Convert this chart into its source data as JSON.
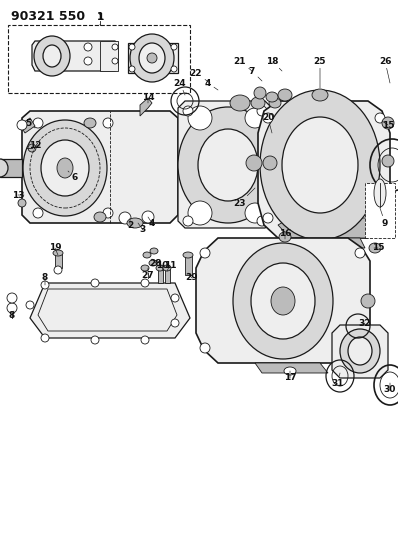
{
  "title": "90321 550",
  "bg_color": "#ffffff",
  "line_color": "#1a1a1a",
  "fig_width": 3.98,
  "fig_height": 5.33,
  "dpi": 100,
  "gray_fill": "#d8d8d8",
  "light_gray": "#eeeeee",
  "mid_gray": "#bbbbbb"
}
